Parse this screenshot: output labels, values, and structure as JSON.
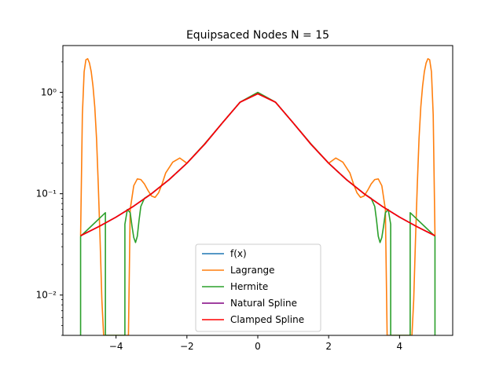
{
  "chart_data": {
    "type": "line",
    "title": "Equipsaced Nodes N = 15",
    "xlabel": "",
    "ylabel": "",
    "x_scale": "linear",
    "y_scale": "log",
    "xlim": [
      -5.5,
      5.5
    ],
    "ylim": [
      0.004,
      2.9
    ],
    "x_ticks": [
      -4,
      -2,
      0,
      2,
      4
    ],
    "x_tick_labels": [
      "−4",
      "−2",
      "0",
      "2",
      "4"
    ],
    "y_ticks": [
      0.01,
      0.1,
      1
    ],
    "y_tick_labels": [
      "10⁻²",
      "10⁻¹",
      "10⁰"
    ],
    "grid": false,
    "legend_position": "lower-center",
    "series": [
      {
        "name": "f(x)",
        "color": "#1f77b4",
        "x": [
          -5.0,
          -4.5,
          -4.0,
          -3.5,
          -3.0,
          -2.5,
          -2.0,
          -1.5,
          -1.0,
          -0.5,
          0.0,
          0.5,
          1.0,
          1.5,
          2.0,
          2.5,
          3.0,
          3.5,
          4.0,
          4.5,
          5.0
        ],
        "y": [
          0.0385,
          0.0471,
          0.0588,
          0.0755,
          0.1,
          0.1379,
          0.2,
          0.3077,
          0.5,
          0.8,
          1.0,
          0.8,
          0.5,
          0.3077,
          0.2,
          0.1379,
          0.1,
          0.0755,
          0.0588,
          0.0471,
          0.0385
        ]
      },
      {
        "name": "Lagrange",
        "color": "#ff7f0e",
        "x": [
          -5.0,
          -4.95,
          -4.9,
          -4.85,
          -4.8,
          -4.75,
          -4.7,
          -4.65,
          -4.6,
          -4.55,
          -4.5,
          -4.45,
          -4.4,
          -4.35,
          -4.32,
          -4.3,
          -4.2,
          -4.0,
          -3.8,
          -3.65,
          -3.6,
          -3.5,
          -3.4,
          -3.3,
          -3.2,
          -3.1,
          -3.0,
          -2.9,
          -2.8,
          -2.7,
          -2.6,
          -2.4,
          -2.2,
          -2.0,
          -1.5,
          -1.0,
          -0.5,
          0.0,
          0.5,
          1.0,
          1.5,
          2.0,
          2.2,
          2.4,
          2.6,
          2.7,
          2.8,
          2.9,
          3.0,
          3.1,
          3.2,
          3.3,
          3.4,
          3.5,
          3.6,
          3.65,
          3.8,
          4.0,
          4.2,
          4.3,
          4.32,
          4.35,
          4.4,
          4.45,
          4.5,
          4.55,
          4.6,
          4.65,
          4.7,
          4.75,
          4.8,
          4.85,
          4.9,
          4.95,
          5.0
        ],
        "y": [
          0.0385,
          0.6,
          1.6,
          2.1,
          2.15,
          1.95,
          1.6,
          1.15,
          0.72,
          0.35,
          0.12,
          0.035,
          0.009,
          0.004,
          0.004,
          0.004,
          0.004,
          0.004,
          0.004,
          0.004,
          0.07,
          0.12,
          0.14,
          0.138,
          0.125,
          0.108,
          0.095,
          0.092,
          0.102,
          0.125,
          0.16,
          0.205,
          0.225,
          0.2,
          0.31,
          0.5,
          0.8,
          1.0,
          0.8,
          0.5,
          0.31,
          0.2,
          0.225,
          0.205,
          0.16,
          0.125,
          0.102,
          0.092,
          0.095,
          0.108,
          0.125,
          0.138,
          0.14,
          0.12,
          0.07,
          0.004,
          0.004,
          0.004,
          0.004,
          0.004,
          0.004,
          0.004,
          0.009,
          0.035,
          0.12,
          0.35,
          0.72,
          1.15,
          1.6,
          1.95,
          2.15,
          2.1,
          1.6,
          0.6,
          0.0385
        ]
      },
      {
        "name": "Hermite",
        "color": "#2ca02c",
        "x": [
          -5.0,
          -5.0,
          -4.3,
          -4.3,
          -4.0,
          -3.75,
          -3.75,
          -3.68,
          -3.6,
          -3.55,
          -3.5,
          -3.45,
          -3.4,
          -3.35,
          -3.3,
          -3.2,
          -3.0,
          -2.5,
          -2.0,
          -1.5,
          -1.0,
          -0.5,
          0.0,
          0.5,
          1.0,
          1.5,
          2.0,
          2.5,
          3.0,
          3.2,
          3.3,
          3.35,
          3.4,
          3.45,
          3.5,
          3.55,
          3.6,
          3.68,
          3.75,
          3.75,
          4.0,
          4.3,
          4.3,
          5.0,
          5.0
        ],
        "y": [
          0.004,
          0.038,
          0.065,
          0.004,
          0.004,
          0.004,
          0.05,
          0.07,
          0.065,
          0.048,
          0.037,
          0.033,
          0.038,
          0.055,
          0.075,
          0.09,
          0.1,
          0.138,
          0.2,
          0.31,
          0.5,
          0.8,
          1.0,
          0.8,
          0.5,
          0.31,
          0.2,
          0.138,
          0.1,
          0.09,
          0.075,
          0.055,
          0.038,
          0.033,
          0.037,
          0.048,
          0.065,
          0.07,
          0.05,
          0.004,
          0.004,
          0.004,
          0.065,
          0.038,
          0.004
        ]
      },
      {
        "name": "Natural Spline",
        "color": "#800080",
        "x": [
          -5.0,
          -4.5,
          -4.0,
          -3.5,
          -3.0,
          -2.5,
          -2.0,
          -1.5,
          -1.0,
          -0.5,
          0.0,
          0.5,
          1.0,
          1.5,
          2.0,
          2.5,
          3.0,
          3.5,
          4.0,
          4.5,
          5.0
        ],
        "y": [
          0.0385,
          0.0471,
          0.0588,
          0.0755,
          0.1,
          0.1379,
          0.2,
          0.3077,
          0.5,
          0.8,
          0.97,
          0.8,
          0.5,
          0.3077,
          0.2,
          0.1379,
          0.1,
          0.0755,
          0.0588,
          0.0471,
          0.0385
        ]
      },
      {
        "name": "Clamped Spline",
        "color": "#ff0000",
        "x": [
          -5.0,
          -4.5,
          -4.0,
          -3.5,
          -3.0,
          -2.5,
          -2.0,
          -1.5,
          -1.0,
          -0.5,
          0.0,
          0.5,
          1.0,
          1.5,
          2.0,
          2.5,
          3.0,
          3.5,
          4.0,
          4.5,
          5.0
        ],
        "y": [
          0.0385,
          0.0471,
          0.0588,
          0.0755,
          0.1,
          0.1379,
          0.2,
          0.3077,
          0.5,
          0.8,
          0.97,
          0.8,
          0.5,
          0.3077,
          0.2,
          0.1379,
          0.1,
          0.0755,
          0.0588,
          0.0471,
          0.0385
        ]
      }
    ]
  }
}
